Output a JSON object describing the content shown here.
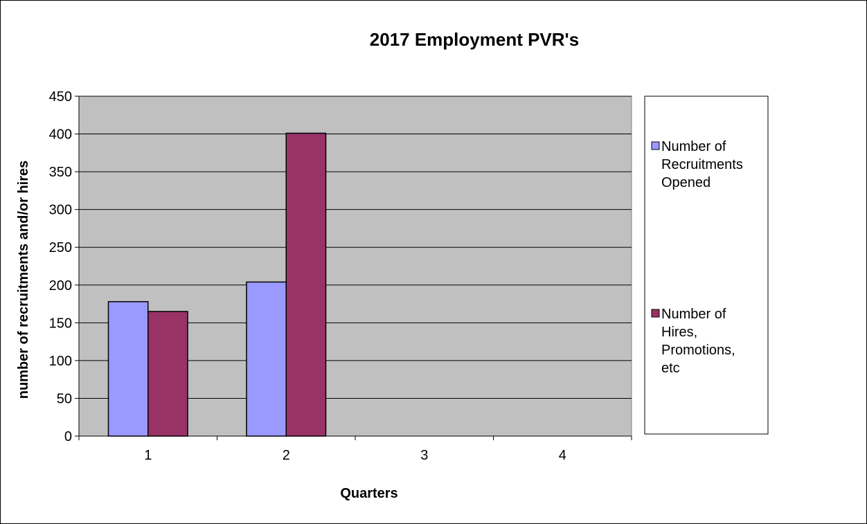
{
  "chart_data": {
    "type": "bar",
    "title": "2017 Employment PVR's",
    "xlabel": "Quarters",
    "ylabel": "number of recruitments and/or hires",
    "categories": [
      "1",
      "2",
      "3",
      "4"
    ],
    "series": [
      {
        "name": "Number of Recruitments Opened",
        "color": "#9999ff",
        "values": [
          178,
          204,
          0,
          0
        ]
      },
      {
        "name": "Number of Hires, Promotions, etc",
        "color": "#993366",
        "values": [
          165,
          401,
          0,
          0
        ]
      }
    ],
    "ylim": [
      0,
      450
    ],
    "yticks": [
      0,
      50,
      100,
      150,
      200,
      250,
      300,
      350,
      400,
      450
    ],
    "grid": true,
    "plot_background": "#c0c0c0",
    "legend_position": "right",
    "legend": {
      "entries": [
        {
          "lines": [
            "Number of",
            "Recruitments",
            "Opened"
          ],
          "color": "#9999ff"
        },
        {
          "lines": [
            "Number of",
            "Hires,",
            "Promotions,",
            "etc"
          ],
          "color": "#993366"
        }
      ]
    }
  }
}
